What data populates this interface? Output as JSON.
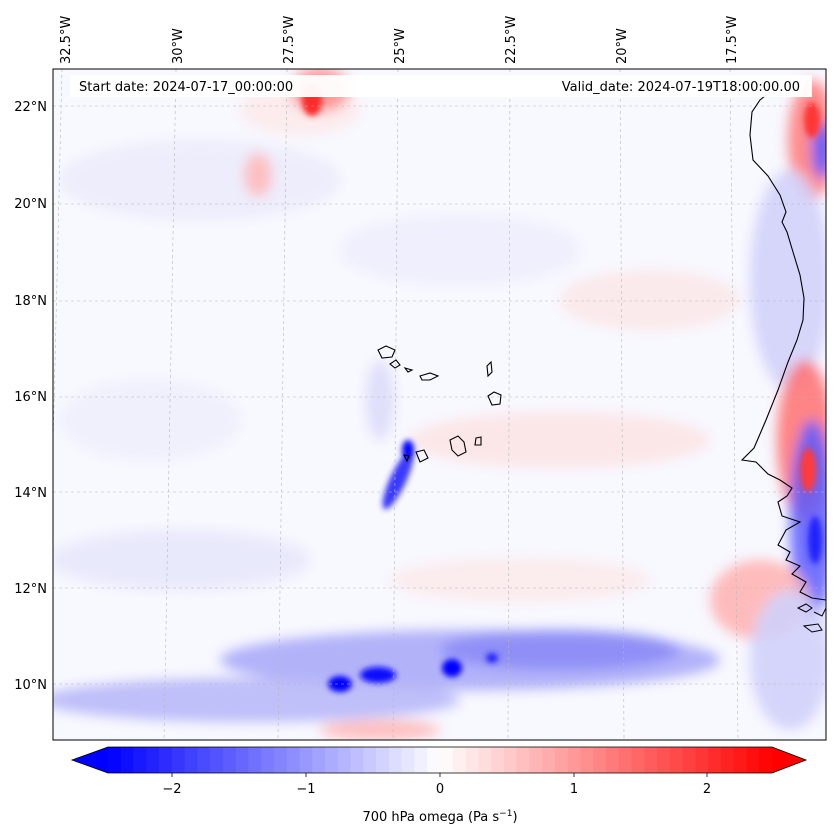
{
  "map": {
    "start_date_label": "Start date: 2024-07-17_00:00:00",
    "valid_date_label": "Valid_date: 2024-07-19T18:00:00.00",
    "lon_ticks": [
      "32.5°W",
      "30°W",
      "27.5°W",
      "25°W",
      "22.5°W",
      "20°W",
      "17.5°W"
    ],
    "lat_ticks": [
      "22°N",
      "20°N",
      "18°N",
      "16°N",
      "14°N",
      "12°N",
      "10°N"
    ],
    "field": "700 hPa omega",
    "units": "Pa s⁻¹"
  },
  "colorbar": {
    "label": "700 hPa omega (Pa s$^{-1}$)",
    "label_text": "700 hPa omega (Pa s",
    "label_sup": "−1",
    "label_close": ")",
    "tick_labels": [
      "−2",
      "−1",
      "0",
      "1",
      "2"
    ],
    "tick_values": [
      -2,
      -1,
      0,
      1,
      2
    ],
    "range": [
      -2.6,
      2.6
    ],
    "colormap": "bwr",
    "extend": "both",
    "colors": {
      "negative": "#0000ff",
      "zero": "#ffffff",
      "positive": "#ff0000"
    }
  },
  "colors": {
    "coastline": "#000000",
    "gridline": "#b0b0b0",
    "frame": "#000000"
  }
}
